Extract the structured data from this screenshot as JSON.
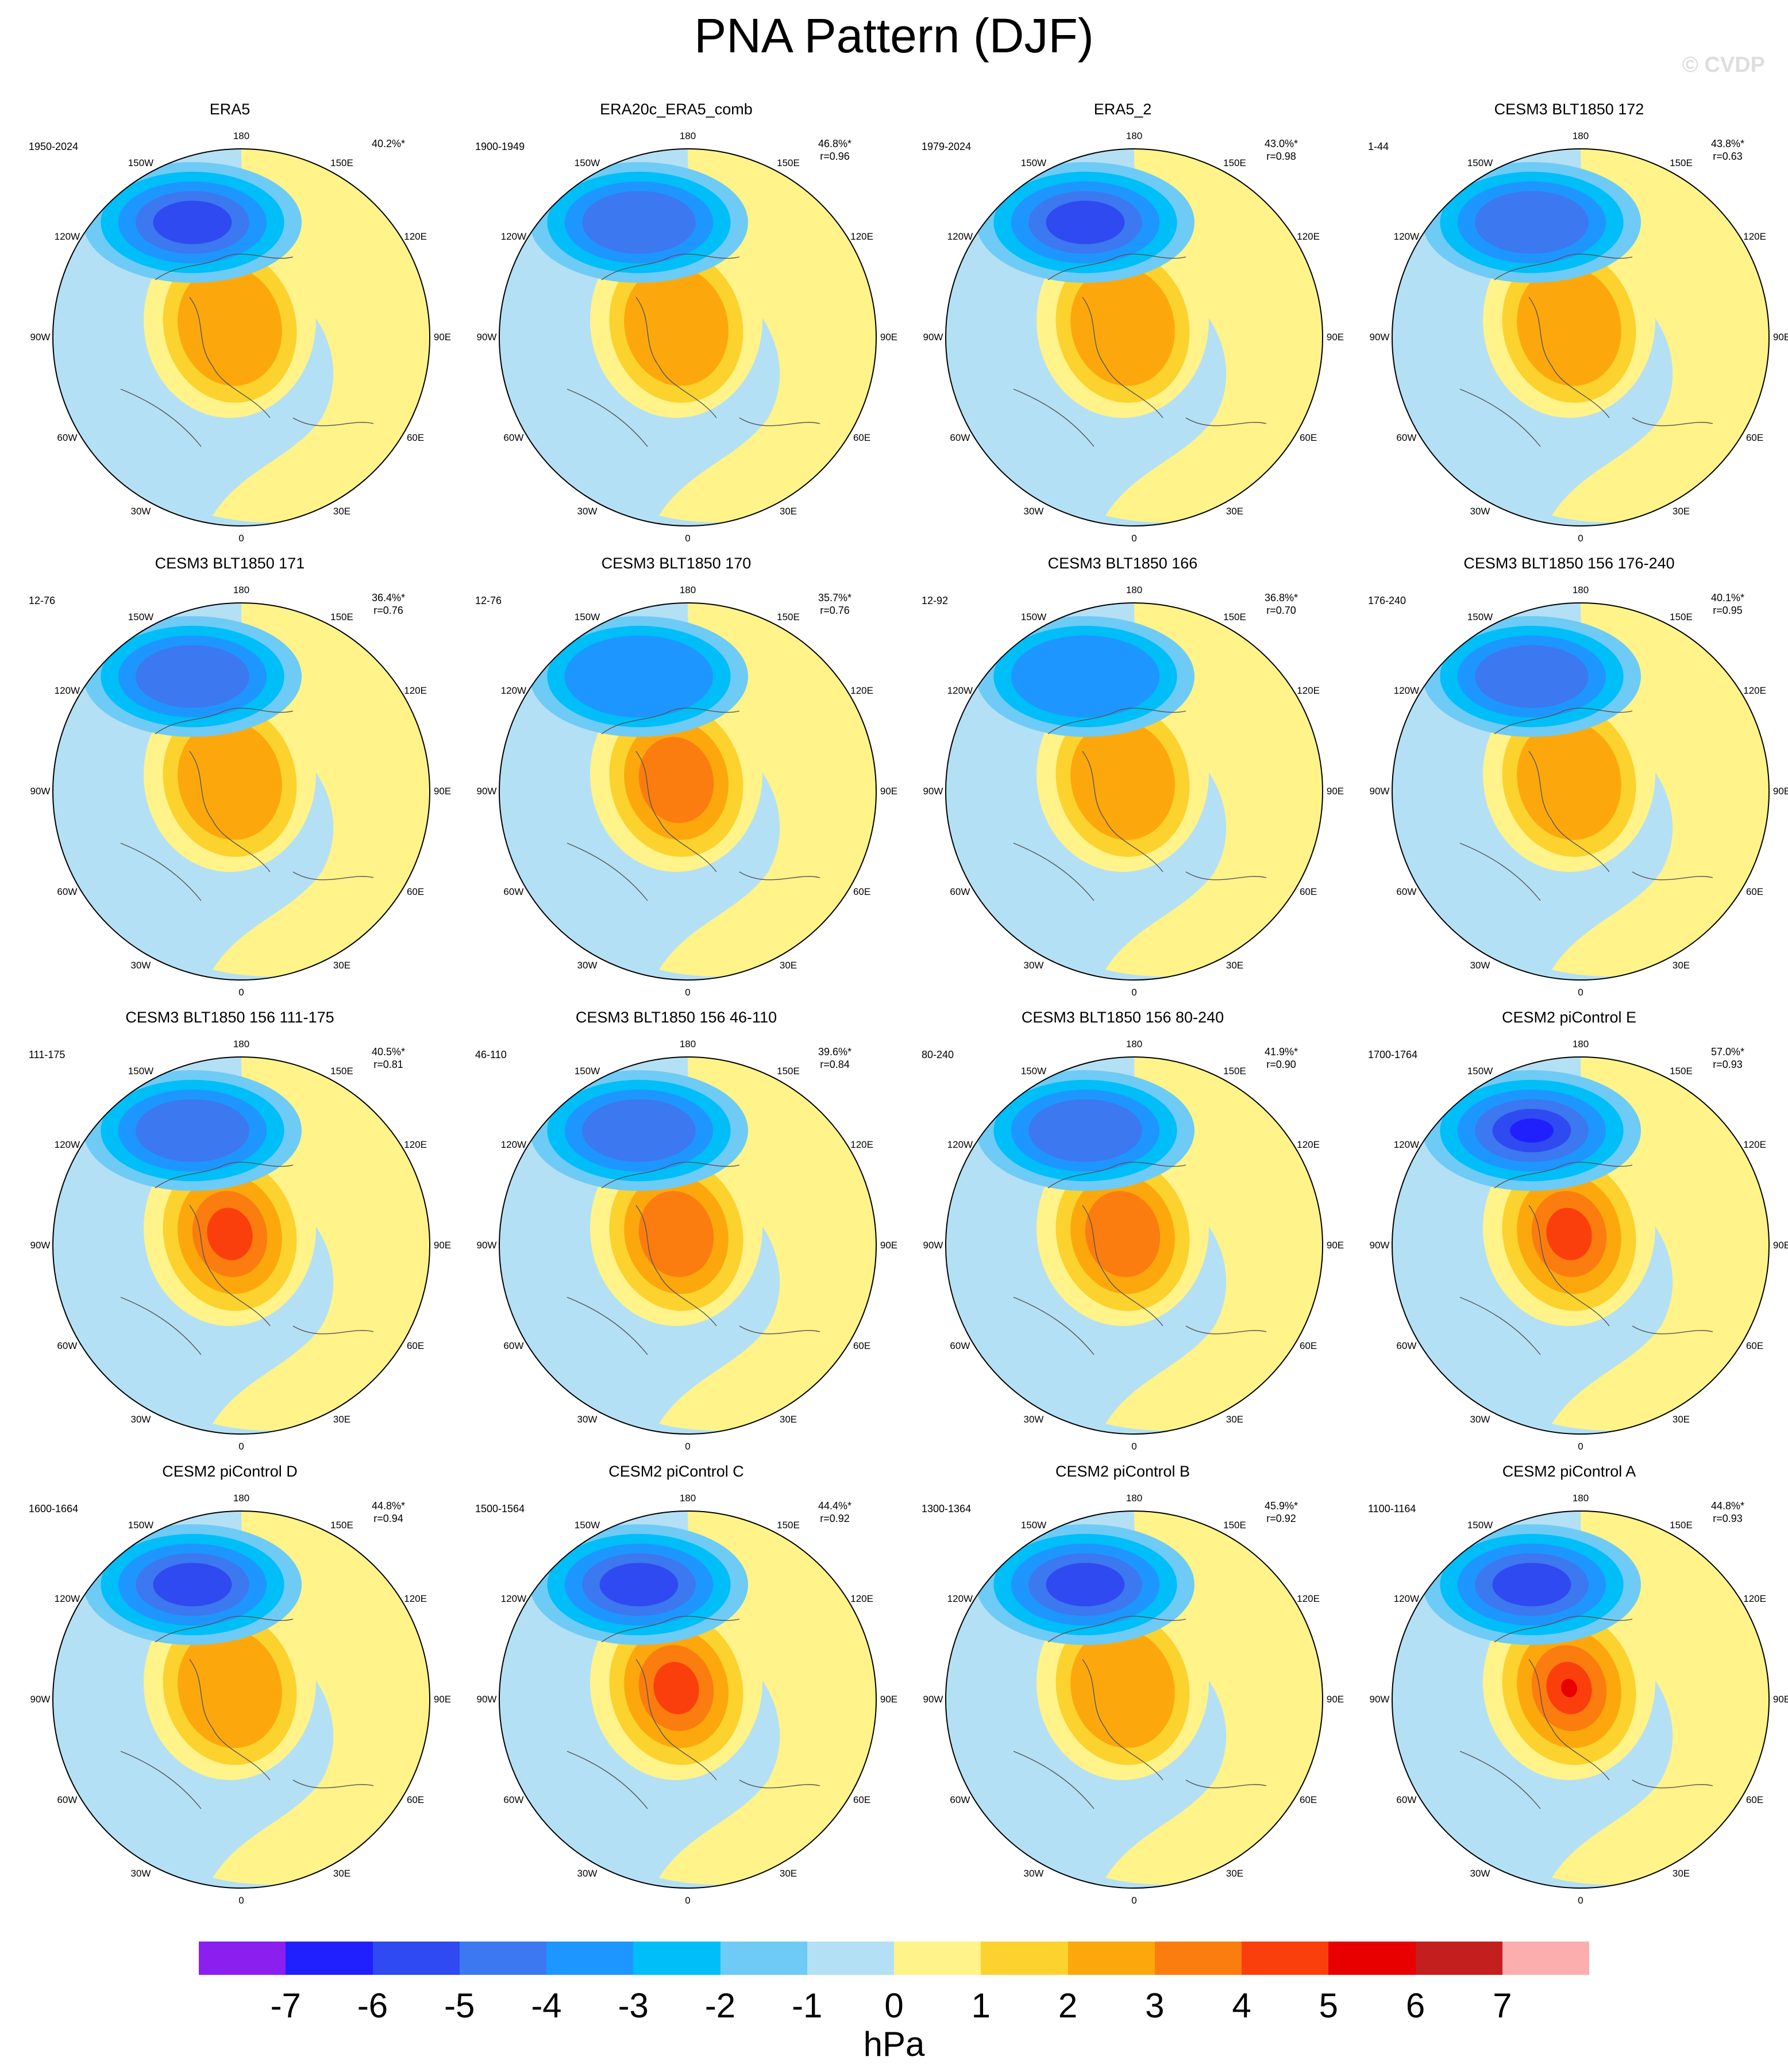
{
  "title": "PNA Pattern (DJF)",
  "watermark": "© CVDP",
  "map_labels": {
    "top": "180",
    "bottom": "0",
    "left": "90W",
    "right": "90E",
    "ul": "150W",
    "ur": "150E",
    "l_up": "120W",
    "r_up": "120E",
    "l_low": "60W",
    "r_low": "60E",
    "ll": "30W",
    "lr": "30E"
  },
  "panels": [
    {
      "title": "ERA5",
      "period": "1950-2024",
      "pct": "40.2%*",
      "r": "",
      "neg": -6,
      "pos": 2
    },
    {
      "title": "ERA20c_ERA5_comb",
      "period": "1900-1949",
      "pct": "46.8%*",
      "r": "r=0.96",
      "neg": -5,
      "pos": 2
    },
    {
      "title": "ERA5_2",
      "period": "1979-2024",
      "pct": "43.0%*",
      "r": "r=0.98",
      "neg": -6,
      "pos": 2
    },
    {
      "title": "CESM3 BLT1850 172",
      "period": "1-44",
      "pct": "43.8%*",
      "r": "r=0.63",
      "neg": -5,
      "pos": 2
    },
    {
      "title": "CESM3 BLT1850 171",
      "period": "12-76",
      "pct": "36.4%*",
      "r": "r=0.76",
      "neg": -5,
      "pos": 2
    },
    {
      "title": "CESM3 BLT1850 170",
      "period": "12-76",
      "pct": "35.7%*",
      "r": "r=0.76",
      "neg": -4,
      "pos": 3
    },
    {
      "title": "CESM3 BLT1850 166",
      "period": "12-92",
      "pct": "36.8%*",
      "r": "r=0.70",
      "neg": -4,
      "pos": 2
    },
    {
      "title": "CESM3 BLT1850 156 176-240",
      "period": "176-240",
      "pct": "40.1%*",
      "r": "r=0.95",
      "neg": -5,
      "pos": 2
    },
    {
      "title": "CESM3 BLT1850 156 111-175",
      "period": "111-175",
      "pct": "40.5%*",
      "r": "r=0.81",
      "neg": -5,
      "pos": 4
    },
    {
      "title": "CESM3 BLT1850 156 46-110",
      "period": "46-110",
      "pct": "39.6%*",
      "r": "r=0.84",
      "neg": -5,
      "pos": 3
    },
    {
      "title": "CESM3 BLT1850 156 80-240",
      "period": "80-240",
      "pct": "41.9%*",
      "r": "r=0.90",
      "neg": -5,
      "pos": 3
    },
    {
      "title": "CESM2 piControl E",
      "period": "1700-1764",
      "pct": "57.0%*",
      "r": "r=0.93",
      "neg": -7,
      "pos": 4
    },
    {
      "title": "CESM2 piControl D",
      "period": "1600-1664",
      "pct": "44.8%*",
      "r": "r=0.94",
      "neg": -6,
      "pos": 2
    },
    {
      "title": "CESM2 piControl C",
      "period": "1500-1564",
      "pct": "44.4%*",
      "r": "r=0.92",
      "neg": -6,
      "pos": 4
    },
    {
      "title": "CESM2 piControl B",
      "period": "1300-1364",
      "pct": "45.9%*",
      "r": "r=0.92",
      "neg": -6,
      "pos": 2
    },
    {
      "title": "CESM2 piControl A",
      "period": "1100-1164",
      "pct": "44.8%*",
      "r": "r=0.93",
      "neg": -6,
      "pos": 5
    }
  ],
  "colorbar": {
    "colors": [
      "#8a1ff0",
      "#2020ff",
      "#2f4af0",
      "#3c78f0",
      "#1e96ff",
      "#00bef8",
      "#6ecbf5",
      "#b4e0f5",
      "#fff38a",
      "#fcd22e",
      "#fca80c",
      "#fb7d0f",
      "#fb3f0c",
      "#e80000",
      "#c41f1f",
      "#fcaeae"
    ],
    "labels": [
      "-7",
      "-6",
      "-5",
      "-4",
      "-3",
      "-2",
      "-1",
      "0",
      "1",
      "2",
      "3",
      "4",
      "5",
      "6",
      "7"
    ],
    "unit": "hPa"
  }
}
